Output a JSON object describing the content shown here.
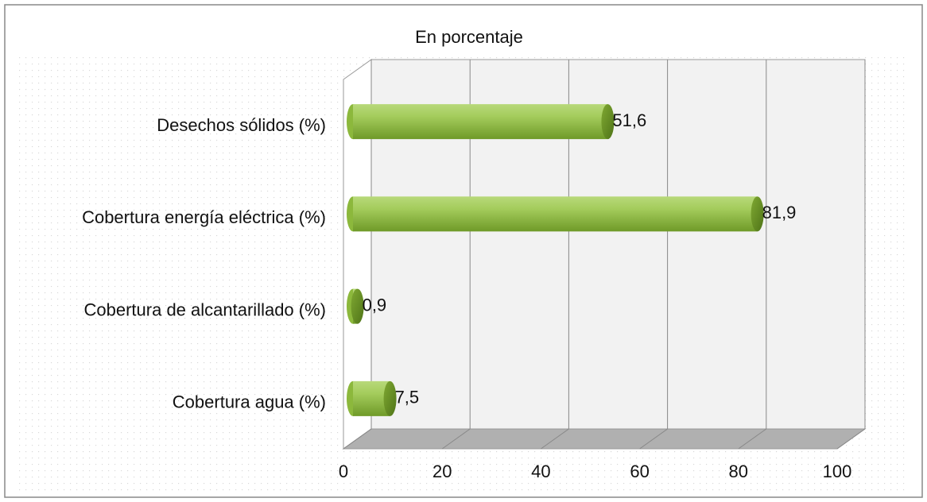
{
  "chart_data": {
    "type": "bar",
    "orientation": "horizontal",
    "title": "En porcentaje",
    "categories": [
      "Desechos sólidos (%)",
      "Cobertura energía eléctrica (%)",
      "Cobertura de alcantarillado (%)",
      "Cobertura agua (%)"
    ],
    "values": [
      51.6,
      81.9,
      0.9,
      7.5
    ],
    "value_labels": [
      "51,6",
      "81,9",
      "0,9",
      "7,5"
    ],
    "color": "#8cb83c",
    "xlim": [
      0,
      100
    ],
    "xticks": [
      0,
      20,
      40,
      60,
      80,
      100
    ],
    "grid": true
  }
}
